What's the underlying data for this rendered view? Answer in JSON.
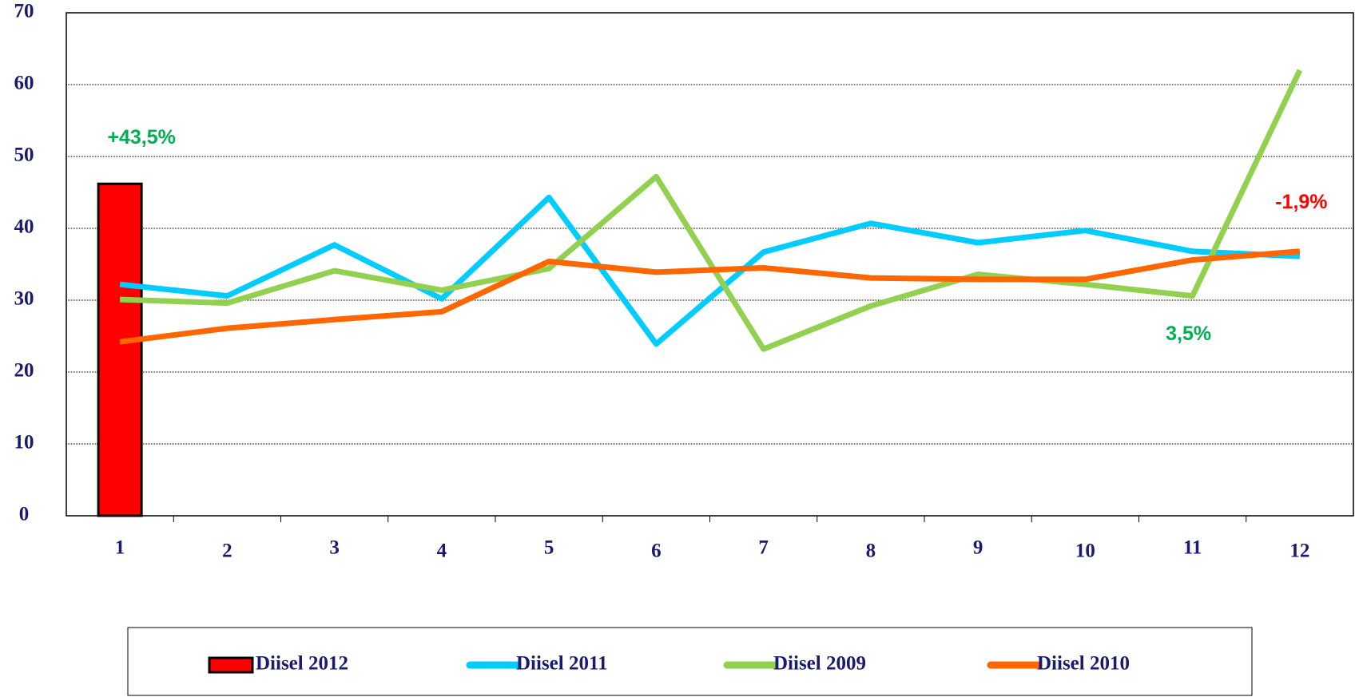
{
  "chart_data": {
    "type": "bar+line",
    "categories": [
      "1",
      "2",
      "3",
      "4",
      "5",
      "6",
      "7",
      "8",
      "9",
      "10",
      "11",
      "12"
    ],
    "series": [
      {
        "name": "Diisel 2012",
        "type": "bar",
        "color": "#ff0000",
        "values": [
          46.2,
          null,
          null,
          null,
          null,
          null,
          null,
          null,
          null,
          null,
          null,
          null
        ]
      },
      {
        "name": "Diisel 2011",
        "type": "line",
        "color": "#00ccff",
        "values": [
          32.2,
          30.6,
          37.7,
          30.2,
          44.3,
          23.9,
          36.7,
          40.7,
          38.0,
          39.7,
          36.8,
          36.1
        ]
      },
      {
        "name": "Diisel 2009",
        "type": "line",
        "color": "#92d050",
        "values": [
          30.1,
          29.6,
          34.1,
          31.4,
          34.4,
          47.2,
          23.2,
          29.2,
          33.6,
          32.2,
          30.6,
          62.0
        ]
      },
      {
        "name": "Diisel 2010",
        "type": "line",
        "color": "#ff6600",
        "values": [
          24.2,
          26.1,
          27.3,
          28.4,
          35.4,
          33.9,
          34.5,
          33.1,
          32.9,
          32.9,
          35.6,
          36.8
        ]
      }
    ],
    "annotations": [
      {
        "text": "+43,5%",
        "color": "#00b050"
      },
      {
        "text": "-1,9%",
        "color": "#ff0000"
      },
      {
        "text": "3,5%",
        "color": "#00b050"
      }
    ],
    "ylim": [
      0,
      70
    ],
    "yticks": [
      0,
      10,
      20,
      30,
      40,
      50,
      60,
      70
    ],
    "grid": true,
    "legend": "bottom"
  }
}
